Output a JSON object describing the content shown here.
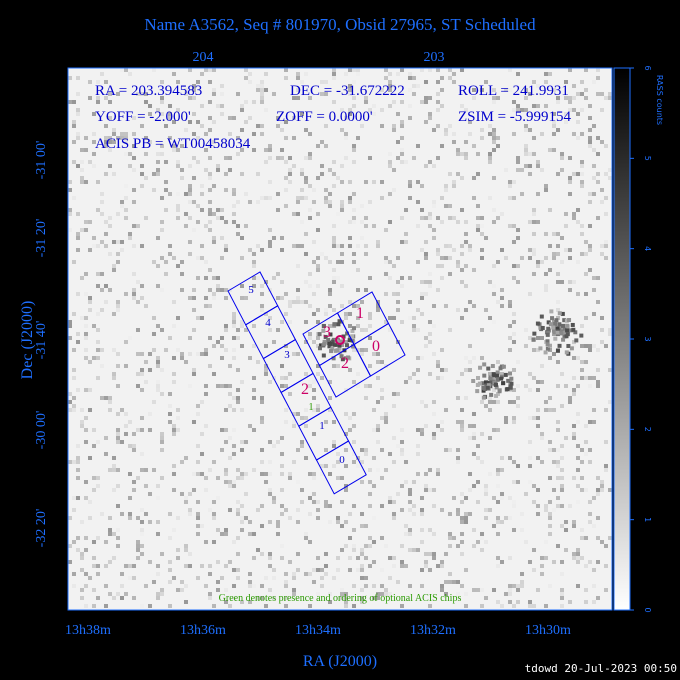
{
  "title": "Name A3562, Seq # 801970, Obsid 27965, ST Scheduled",
  "top_ticks": [
    "204",
    "203"
  ],
  "left_ticks": [
    "-31 00'",
    "-31 20'",
    "-31 40'",
    "-30 00'",
    "-32 20'"
  ],
  "bottom_ticks": [
    "13h38m",
    "13h36m",
    "13h34m",
    "13h32m",
    "13h30m"
  ],
  "x_label": "RA (J2000)",
  "y_label": "Dec (J2000)",
  "info": {
    "ra": "RA = 203.394583",
    "dec": "DEC = -31.672222",
    "roll": "ROLL = 241.9931",
    "yoff": "YOFF = -2.000'",
    "zoff": "ZOFF = 0.0000'",
    "zsim": "ZSIM = -5.999154",
    "acis_pb": "ACIS PB = WT00458034"
  },
  "acis_s_chips": [
    "5",
    "4",
    "3",
    "2",
    "1",
    "0"
  ],
  "optional_chip": "1",
  "acis_i_chips": [
    "3",
    "1",
    "2",
    "0"
  ],
  "colorbar": {
    "label": "RASS counts",
    "ticks": [
      0,
      1,
      2,
      3,
      4,
      5,
      6
    ]
  },
  "note": "Green denotes presence and ordering of optional ACIS chips",
  "footer": "tdowd 20-Jul-2023 00:50"
}
